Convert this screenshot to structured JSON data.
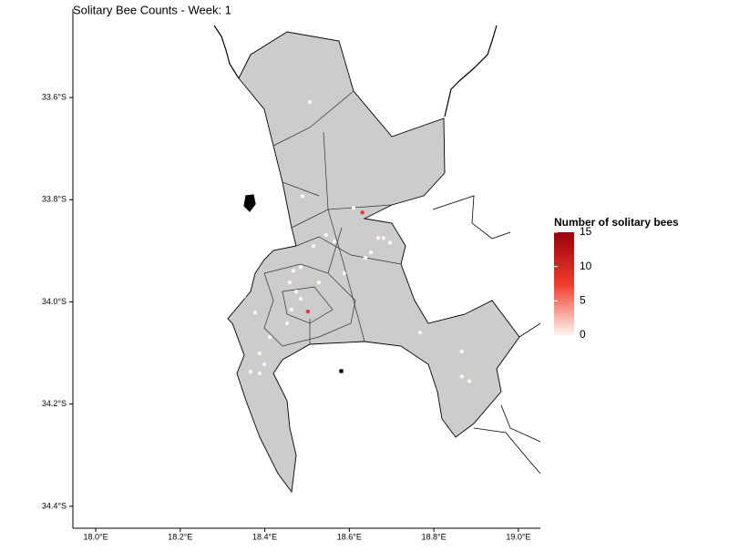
{
  "chart_data": {
    "type": "map",
    "title": "Solitary Bee Counts - Week: 1",
    "legend_title": "Number of solitary bees",
    "xlim": [
      17.946,
      19.052
    ],
    "ylim": [
      -34.443,
      -33.427
    ],
    "xticks": [
      {
        "value": 18.0,
        "label": "18.0°E"
      },
      {
        "value": 18.2,
        "label": "18.2°E"
      },
      {
        "value": 18.4,
        "label": "18.4°E"
      },
      {
        "value": 18.6,
        "label": "18.6°E"
      },
      {
        "value": 18.8,
        "label": "18.8°E"
      },
      {
        "value": 19.0,
        "label": "19.0°E"
      }
    ],
    "yticks": [
      {
        "value": -33.6,
        "label": "33.6°S"
      },
      {
        "value": -33.8,
        "label": "33.8°S"
      },
      {
        "value": -34.0,
        "label": "34.0°S"
      },
      {
        "value": -34.2,
        "label": "34.2°S"
      },
      {
        "value": -34.4,
        "label": "34.4°S"
      }
    ],
    "x": [
      18.506,
      18.631,
      18.61,
      18.502,
      18.668,
      18.681,
      18.696,
      18.651,
      18.638,
      18.545,
      18.515,
      18.565,
      18.485,
      18.468,
      18.459,
      18.474,
      18.485,
      18.463,
      18.453,
      18.412,
      18.388,
      18.399,
      18.366,
      18.388,
      18.351,
      18.377,
      18.489,
      18.767,
      18.866,
      18.866,
      18.884,
      18.588,
      18.528
    ],
    "y": [
      -33.609,
      -33.825,
      -33.816,
      -34.019,
      -33.875,
      -33.875,
      -33.884,
      -33.903,
      -33.914,
      -33.869,
      -33.891,
      -33.882,
      -33.932,
      -33.939,
      -33.962,
      -33.98,
      -33.994,
      -34.015,
      -34.042,
      -34.069,
      -34.101,
      -34.122,
      -34.137,
      -34.14,
      -33.989,
      -34.021,
      -33.793,
      -34.06,
      -34.097,
      -34.146,
      -34.155,
      -33.944,
      -33.962
    ],
    "values": [
      0,
      8,
      0,
      8,
      0,
      0,
      0,
      0,
      0,
      0,
      0,
      0,
      0,
      0,
      0,
      0,
      0,
      0,
      0,
      0,
      0,
      0,
      0,
      0,
      0,
      0,
      0,
      0,
      0,
      0,
      0,
      0,
      0
    ],
    "colors": [
      "#fff5f0",
      "#ef3b2c",
      "#99000d"
    ],
    "legend_lim": [
      0,
      15
    ],
    "legend_ticks": [
      0,
      5,
      10,
      15
    ]
  }
}
